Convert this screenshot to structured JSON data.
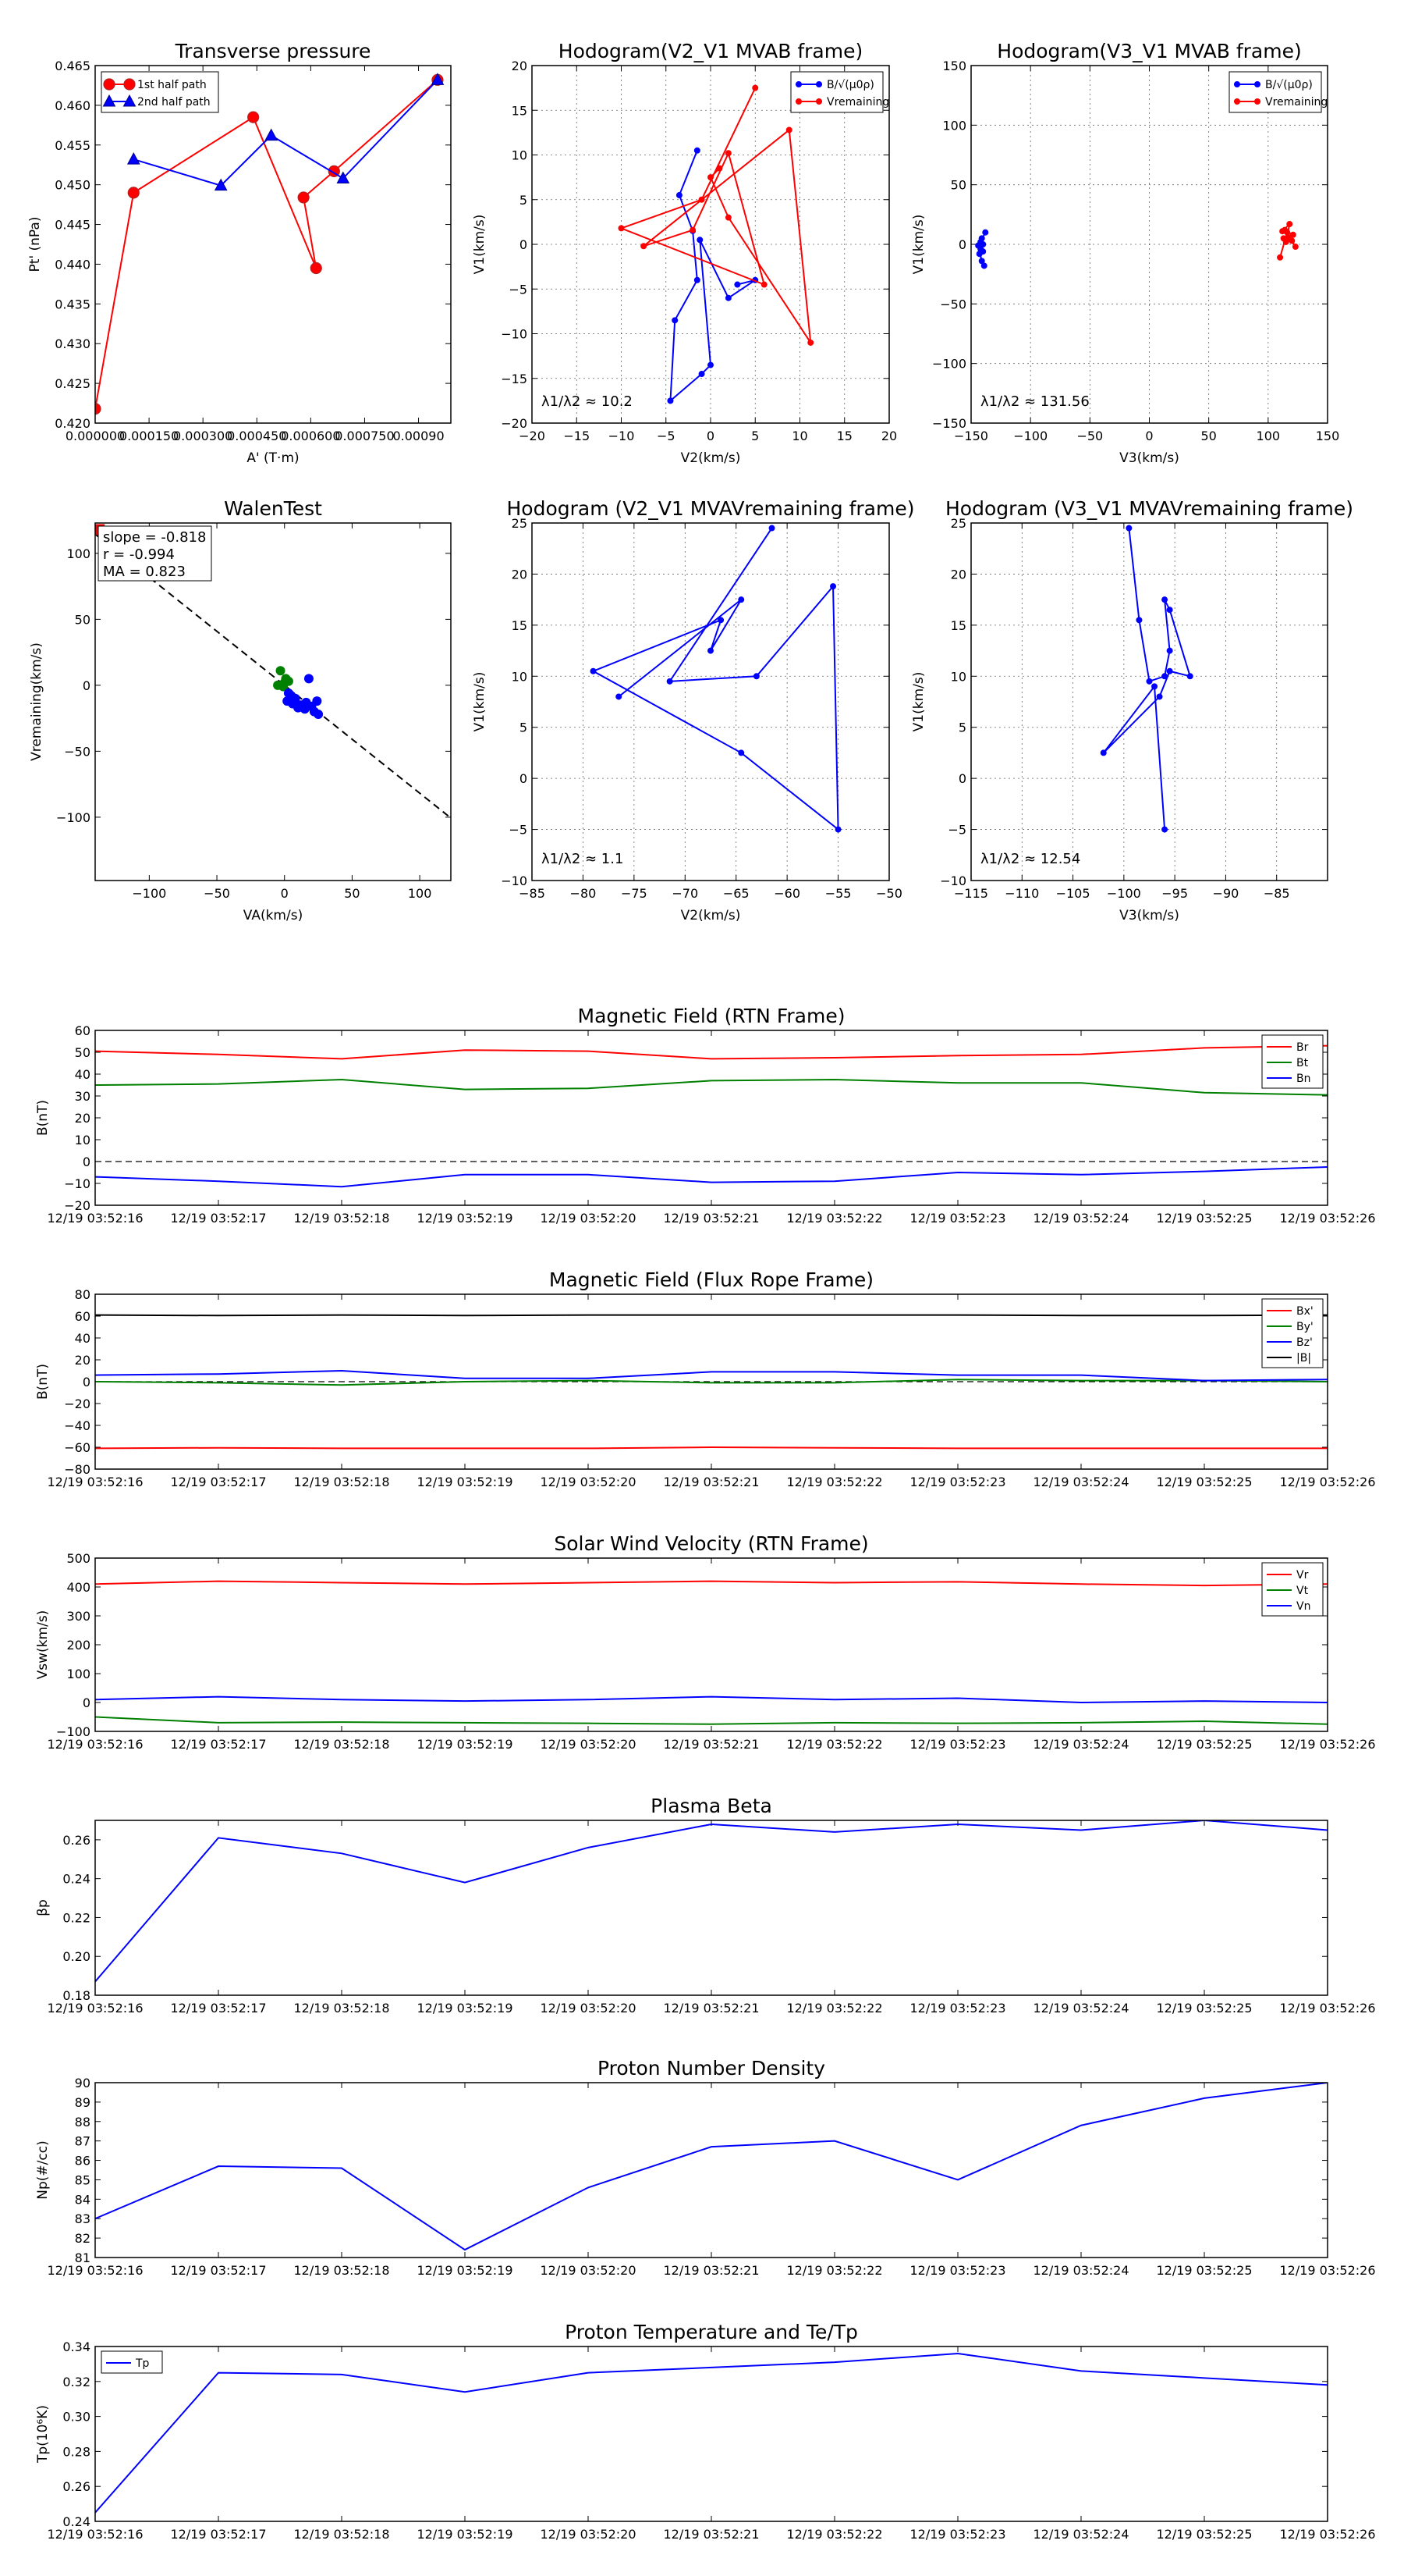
{
  "figure": {
    "background": "#ffffff"
  },
  "chart_data": [
    {
      "id": "transverse_pressure",
      "type": "line",
      "title": "Transverse pressure",
      "xlabel": "A' (T·m)",
      "ylabel": "Pt' (nPa)",
      "xlim": [
        0,
        0.00099
      ],
      "ylim": [
        0.42,
        0.465
      ],
      "xticks": [
        0,
        0.00015,
        0.0003,
        0.00045,
        0.0006,
        0.00075,
        0.0009
      ],
      "xtick_labels": [
        "0.000000",
        "0.000150",
        "0.000300",
        "0.000450",
        "0.000600",
        "0.000750",
        "0.00090"
      ],
      "yticks": [
        0.42,
        0.425,
        0.43,
        0.435,
        0.44,
        0.445,
        0.45,
        0.455,
        0.46,
        0.465
      ],
      "ytick_labels": [
        "0.420",
        "0.425",
        "0.430",
        "0.435",
        "0.440",
        "0.445",
        "0.450",
        "0.455",
        "0.460",
        "0.465"
      ],
      "grid": false,
      "legend": "top-left",
      "series": [
        {
          "name": "1st half path",
          "color": "#ff0000",
          "edge": "#b22222",
          "marker": "circle",
          "x": [
            0,
            0.000107,
            0.00044,
            0.000615,
            0.00058,
            0.000665,
            0.000953
          ],
          "y": [
            0.4218,
            0.449,
            0.4585,
            0.4395,
            0.4484,
            0.4517,
            0.4632
          ]
        },
        {
          "name": "2nd half path",
          "color": "#0000ff",
          "edge": "#00008b",
          "marker": "triangle",
          "x": [
            0.000107,
            0.00035,
            0.00049,
            0.00069,
            0.000953
          ],
          "y": [
            0.4532,
            0.4499,
            0.4562,
            0.4508,
            0.4632
          ]
        }
      ]
    },
    {
      "id": "hodo_v2v1_mvab",
      "type": "line",
      "title": "Hodogram(V2_V1 MVAB frame)",
      "xlabel": "V2(km/s)",
      "ylabel": "V1(km/s)",
      "xlim": [
        -20,
        20
      ],
      "ylim": [
        -20,
        20
      ],
      "xticks": [
        -20,
        -15,
        -10,
        -5,
        0,
        5,
        10,
        15,
        20
      ],
      "xtick_labels": [
        "−20",
        "−15",
        "−10",
        "−5",
        "0",
        "5",
        "10",
        "15",
        "20"
      ],
      "yticks": [
        -20,
        -15,
        -10,
        -5,
        0,
        5,
        10,
        15,
        20
      ],
      "ytick_labels": [
        "−20",
        "−15",
        "−10",
        "−5",
        "0",
        "5",
        "10",
        "15",
        "20"
      ],
      "grid": true,
      "legend": "top-right",
      "annotation": "λ1/λ2 ≈ 10.2",
      "series": [
        {
          "name": "B/√(μ0ρ)",
          "color": "#0000ff",
          "marker": "dot",
          "x": [
            -1.5,
            -3.5,
            -2,
            -1.5,
            -4,
            -4.5,
            -1,
            0,
            -1.2,
            2,
            5,
            3
          ],
          "y": [
            10.5,
            5.5,
            1.5,
            -4.0,
            -8.5,
            -17.5,
            -14.5,
            -13.5,
            0.5,
            -6.0,
            -4.0,
            -4.5
          ]
        },
        {
          "name": "Vremaining",
          "color": "#ff0000",
          "marker": "dot",
          "x": [
            5,
            -1,
            -10,
            6,
            2,
            -2,
            -7.5,
            8.8,
            11.2,
            2,
            0,
            1
          ],
          "y": [
            17.5,
            5,
            1.8,
            -4.5,
            10.2,
            1.6,
            -0.2,
            12.8,
            -11,
            3,
            7.5,
            8.5
          ]
        }
      ]
    },
    {
      "id": "hodo_v3v1_mvab",
      "type": "line",
      "title": "Hodogram(V3_V1 MVAB frame)",
      "xlabel": "V3(km/s)",
      "ylabel": "V1(km/s)",
      "xlim": [
        -150,
        150
      ],
      "ylim": [
        -150,
        150
      ],
      "xticks": [
        -150,
        -100,
        -50,
        0,
        50,
        100,
        150
      ],
      "xtick_labels": [
        "−150",
        "−100",
        "−50",
        "0",
        "50",
        "100",
        "150"
      ],
      "yticks": [
        -150,
        -100,
        -50,
        0,
        50,
        100,
        150
      ],
      "ytick_labels": [
        "−150",
        "−100",
        "−50",
        "0",
        "50",
        "100",
        "150"
      ],
      "grid": true,
      "legend": "top-right",
      "annotation": "λ1/λ2 ≈ 131.56",
      "series": [
        {
          "name": "B/√(μ0ρ)",
          "color": "#0000ff",
          "marker": "dot",
          "x": [
            -138,
            -142,
            -140,
            -144,
            -141,
            -139,
            -143,
            -140,
            -142,
            -141
          ],
          "y": [
            10,
            2,
            -6,
            -1,
            -14,
            -18,
            -8,
            0,
            -4,
            5
          ]
        },
        {
          "name": "Vremaining",
          "color": "#ff0000",
          "marker": "dot",
          "x": [
            112,
            118,
            115,
            121,
            114,
            123,
            117,
            113,
            120,
            116,
            110
          ],
          "y": [
            11,
            17,
            2,
            8,
            12,
            -2,
            6,
            5,
            3,
            10,
            -11
          ]
        }
      ]
    },
    {
      "id": "walen_test",
      "type": "scatter",
      "title": "WalenTest",
      "xlabel": "VA(km/s)",
      "ylabel": "Vremaining(km/s)",
      "xlim": [
        -140,
        123
      ],
      "ylim": [
        -148,
        123
      ],
      "xticks": [
        -100,
        -50,
        0,
        50,
        100
      ],
      "xtick_labels": [
        "−100",
        "−50",
        "0",
        "50",
        "100"
      ],
      "yticks": [
        -100,
        -50,
        0,
        50,
        100
      ],
      "ytick_labels": [
        "−100",
        "−50",
        "0",
        "50",
        "100"
      ],
      "grid": false,
      "legend": "top-left",
      "stats": [
        "slope = -0.818",
        "r = -0.994",
        "MA = 0.823"
      ],
      "fit_line": {
        "slope": -0.818,
        "intercept": 0
      },
      "series": [
        {
          "name": "green",
          "color": "#008000",
          "x": [
            -5,
            -3,
            0,
            3,
            -1,
            1
          ],
          "y": [
            0,
            11,
            2,
            3,
            -1,
            5
          ]
        },
        {
          "name": "blue",
          "color": "#0000ff",
          "x": [
            2,
            5,
            8,
            12,
            15,
            18,
            22,
            25,
            20,
            16,
            10,
            6,
            3,
            24
          ],
          "y": [
            -12,
            -8,
            -10,
            -15,
            -18,
            5,
            -20,
            -22,
            -16,
            -13,
            -17,
            -14,
            -6,
            -12
          ]
        },
        {
          "name": "red",
          "color": "#ff0000",
          "x": [
            -137
          ],
          "y": [
            118
          ]
        }
      ]
    },
    {
      "id": "hodo_v2v1_mvav",
      "type": "line",
      "title": "Hodogram (V2_V1 MVAVremaining frame)",
      "xlabel": "V2(km/s)",
      "ylabel": "V1(km/s)",
      "xlim": [
        -85,
        -50
      ],
      "ylim": [
        -10,
        25
      ],
      "xticks": [
        -85,
        -80,
        -75,
        -70,
        -65,
        -60,
        -55,
        -50
      ],
      "xtick_labels": [
        "−85",
        "−80",
        "−75",
        "−70",
        "−65",
        "−60",
        "−55",
        "−50"
      ],
      "yticks": [
        -10,
        -5,
        0,
        5,
        10,
        15,
        20,
        25
      ],
      "ytick_labels": [
        "−10",
        "−5",
        "0",
        "5",
        "10",
        "15",
        "20",
        "25"
      ],
      "grid": true,
      "annotation": "λ1/λ2 ≈ 1.1",
      "series": [
        {
          "name": "V",
          "color": "#0000ff",
          "marker": "dot",
          "x": [
            -61.5,
            -71.5,
            -63,
            -55.5,
            -55,
            -64.5,
            -79,
            -66.5,
            -67.5,
            -64.5,
            -76.5
          ],
          "y": [
            24.5,
            9.5,
            10,
            18.8,
            -5,
            2.5,
            10.5,
            15.5,
            12.5,
            17.5,
            8
          ]
        }
      ]
    },
    {
      "id": "hodo_v3v1_mvav",
      "type": "line",
      "title": "Hodogram (V3_V1 MVAVremaining frame)",
      "xlabel": "V3(km/s)",
      "ylabel": "V1(km/s)",
      "xlim": [
        -115,
        -80
      ],
      "ylim": [
        -10,
        25
      ],
      "xticks": [
        -115,
        -110,
        -105,
        -100,
        -95,
        -90,
        -85
      ],
      "xtick_labels": [
        "−115",
        "−110",
        "−105",
        "−100",
        "−95",
        "−90",
        "−85"
      ],
      "yticks": [
        -10,
        -5,
        0,
        5,
        10,
        15,
        20,
        25
      ],
      "ytick_labels": [
        "−10",
        "−5",
        "0",
        "5",
        "10",
        "15",
        "20",
        "25"
      ],
      "grid": true,
      "annotation": "λ1/λ2 ≈ 12.54",
      "series": [
        {
          "name": "V",
          "color": "#0000ff",
          "marker": "dot",
          "x": [
            -99.5,
            -98.5,
            -97.5,
            -96,
            -95.5,
            -96,
            -95.5,
            -93.5,
            -95.5,
            -96.5,
            -102,
            -97,
            -96
          ],
          "y": [
            24.5,
            15.5,
            9.5,
            10,
            12.5,
            17.5,
            16.5,
            10,
            10.5,
            8,
            2.5,
            9,
            -5
          ]
        }
      ]
    },
    {
      "id": "mag_rtn",
      "type": "line",
      "title": "Magnetic Field (RTN Frame)",
      "xlabel": "",
      "ylabel": "B(nT)",
      "categories": [
        "12/19 03:52:16",
        "12/19 03:52:17",
        "12/19 03:52:18",
        "12/19 03:52:19",
        "12/19 03:52:20",
        "12/19 03:52:21",
        "12/19 03:52:22",
        "12/19 03:52:23",
        "12/19 03:52:24",
        "12/19 03:52:25",
        "12/19 03:52:26"
      ],
      "ylim": [
        -20,
        60
      ],
      "yticks": [
        -20,
        -10,
        0,
        10,
        20,
        30,
        40,
        50,
        60
      ],
      "ytick_labels": [
        "−20",
        "−10",
        "0",
        "10",
        "20",
        "30",
        "40",
        "50",
        "60"
      ],
      "zero_line": true,
      "legend": "top-right",
      "series": [
        {
          "name": "Br",
          "color": "#ff0000",
          "values": [
            50.5,
            49,
            47,
            51,
            50.5,
            47,
            47.5,
            48.5,
            49,
            52,
            53
          ]
        },
        {
          "name": "Bt",
          "color": "#008000",
          "values": [
            35,
            35.5,
            37.5,
            33,
            33.5,
            37,
            37.5,
            36,
            36,
            31.5,
            30.5
          ]
        },
        {
          "name": "Bn",
          "color": "#0000ff",
          "values": [
            -7,
            -9,
            -11.5,
            -6,
            -6,
            -9.5,
            -9,
            -5,
            -6,
            -4.5,
            -2.5
          ]
        }
      ]
    },
    {
      "id": "mag_fr",
      "type": "line",
      "title": "Magnetic Field (Flux Rope Frame)",
      "xlabel": "",
      "ylabel": "B(nT)",
      "categories": [
        "12/19 03:52:16",
        "12/19 03:52:17",
        "12/19 03:52:18",
        "12/19 03:52:19",
        "12/19 03:52:20",
        "12/19 03:52:21",
        "12/19 03:52:22",
        "12/19 03:52:23",
        "12/19 03:52:24",
        "12/19 03:52:25",
        "12/19 03:52:26"
      ],
      "ylim": [
        -80,
        80
      ],
      "yticks": [
        -80,
        -60,
        -40,
        -20,
        0,
        20,
        40,
        60,
        80
      ],
      "ytick_labels": [
        "−80",
        "−60",
        "−40",
        "−20",
        "0",
        "20",
        "40",
        "60",
        "80"
      ],
      "zero_line": true,
      "legend": "top-right",
      "series": [
        {
          "name": "Bx'",
          "color": "#ff0000",
          "values": [
            -61,
            -60.5,
            -61,
            -61,
            -61,
            -60,
            -60.5,
            -61,
            -61,
            -61,
            -61
          ]
        },
        {
          "name": "By'",
          "color": "#008000",
          "values": [
            0,
            -1,
            -3,
            0,
            1,
            -1,
            -1,
            2,
            1,
            1,
            0
          ]
        },
        {
          "name": "Bz'",
          "color": "#0000ff",
          "values": [
            6,
            7,
            10,
            3,
            3,
            9,
            9,
            6,
            6,
            1,
            2
          ]
        },
        {
          "name": "|B|",
          "color": "#000000",
          "values": [
            61,
            60.5,
            61,
            60.5,
            61,
            61,
            61,
            61,
            60.5,
            60.5,
            61
          ]
        }
      ]
    },
    {
      "id": "sw_velocity",
      "type": "line",
      "title": "Solar Wind Velocity (RTN Frame)",
      "xlabel": "",
      "ylabel": "Vsw(km/s)",
      "categories": [
        "12/19 03:52:16",
        "12/19 03:52:17",
        "12/19 03:52:18",
        "12/19 03:52:19",
        "12/19 03:52:20",
        "12/19 03:52:21",
        "12/19 03:52:22",
        "12/19 03:52:23",
        "12/19 03:52:24",
        "12/19 03:52:25",
        "12/19 03:52:26"
      ],
      "ylim": [
        -100,
        500
      ],
      "yticks": [
        -100,
        0,
        100,
        200,
        300,
        400,
        500
      ],
      "ytick_labels": [
        "−100",
        "0",
        "100",
        "200",
        "300",
        "400",
        "500"
      ],
      "legend": "top-right",
      "series": [
        {
          "name": "Vr",
          "color": "#ff0000",
          "values": [
            410,
            420,
            415,
            410,
            415,
            420,
            415,
            418,
            410,
            405,
            410
          ]
        },
        {
          "name": "Vt",
          "color": "#008000",
          "values": [
            -50,
            -70,
            -68,
            -70,
            -72,
            -75,
            -70,
            -72,
            -70,
            -65,
            -75
          ]
        },
        {
          "name": "Vn",
          "color": "#0000ff",
          "values": [
            10,
            20,
            10,
            5,
            10,
            20,
            10,
            15,
            0,
            5,
            0
          ]
        }
      ]
    },
    {
      "id": "plasma_beta",
      "type": "line",
      "title": "Plasma Beta",
      "xlabel": "",
      "ylabel": "βp",
      "categories": [
        "12/19 03:52:16",
        "12/19 03:52:17",
        "12/19 03:52:18",
        "12/19 03:52:19",
        "12/19 03:52:20",
        "12/19 03:52:21",
        "12/19 03:52:22",
        "12/19 03:52:23",
        "12/19 03:52:24",
        "12/19 03:52:25",
        "12/19 03:52:26"
      ],
      "ylim": [
        0.18,
        0.27
      ],
      "yticks": [
        0.18,
        0.2,
        0.22,
        0.24,
        0.26
      ],
      "ytick_labels": [
        "0.18",
        "0.20",
        "0.22",
        "0.24",
        "0.26"
      ],
      "series": [
        {
          "name": "beta",
          "color": "#0000ff",
          "values": [
            0.187,
            0.261,
            0.253,
            0.238,
            0.256,
            0.268,
            0.264,
            0.268,
            0.265,
            0.27,
            0.265
          ]
        }
      ]
    },
    {
      "id": "proton_density",
      "type": "line",
      "title": "Proton Number Density",
      "xlabel": "",
      "ylabel": "Np(#/cc)",
      "categories": [
        "12/19 03:52:16",
        "12/19 03:52:17",
        "12/19 03:52:18",
        "12/19 03:52:19",
        "12/19 03:52:20",
        "12/19 03:52:21",
        "12/19 03:52:22",
        "12/19 03:52:23",
        "12/19 03:52:24",
        "12/19 03:52:25",
        "12/19 03:52:26"
      ],
      "ylim": [
        81,
        90
      ],
      "yticks": [
        81,
        82,
        83,
        84,
        85,
        86,
        87,
        88,
        89,
        90
      ],
      "ytick_labels": [
        "81",
        "82",
        "83",
        "84",
        "85",
        "86",
        "87",
        "88",
        "89",
        "90"
      ],
      "series": [
        {
          "name": "Np",
          "color": "#0000ff",
          "values": [
            83,
            85.7,
            85.6,
            81.4,
            84.6,
            86.7,
            87.0,
            85.0,
            87.8,
            89.2,
            90
          ]
        }
      ]
    },
    {
      "id": "proton_temp",
      "type": "line",
      "title": "Proton Temperature and Te/Tp",
      "xlabel": "",
      "ylabel": "Tp(10⁶K)",
      "categories": [
        "12/19 03:52:16",
        "12/19 03:52:17",
        "12/19 03:52:18",
        "12/19 03:52:19",
        "12/19 03:52:20",
        "12/19 03:52:21",
        "12/19 03:52:22",
        "12/19 03:52:23",
        "12/19 03:52:24",
        "12/19 03:52:25",
        "12/19 03:52:26"
      ],
      "ylim": [
        0.24,
        0.34
      ],
      "yticks": [
        0.24,
        0.26,
        0.28,
        0.3,
        0.32,
        0.34
      ],
      "ytick_labels": [
        "0.24",
        "0.26",
        "0.28",
        "0.30",
        "0.32",
        "0.34"
      ],
      "legend": "top-left",
      "series": [
        {
          "name": "Tp",
          "color": "#0000ff",
          "values": [
            0.245,
            0.325,
            0.324,
            0.314,
            0.325,
            0.328,
            0.331,
            0.336,
            0.326,
            0.322,
            0.318
          ]
        }
      ]
    }
  ]
}
